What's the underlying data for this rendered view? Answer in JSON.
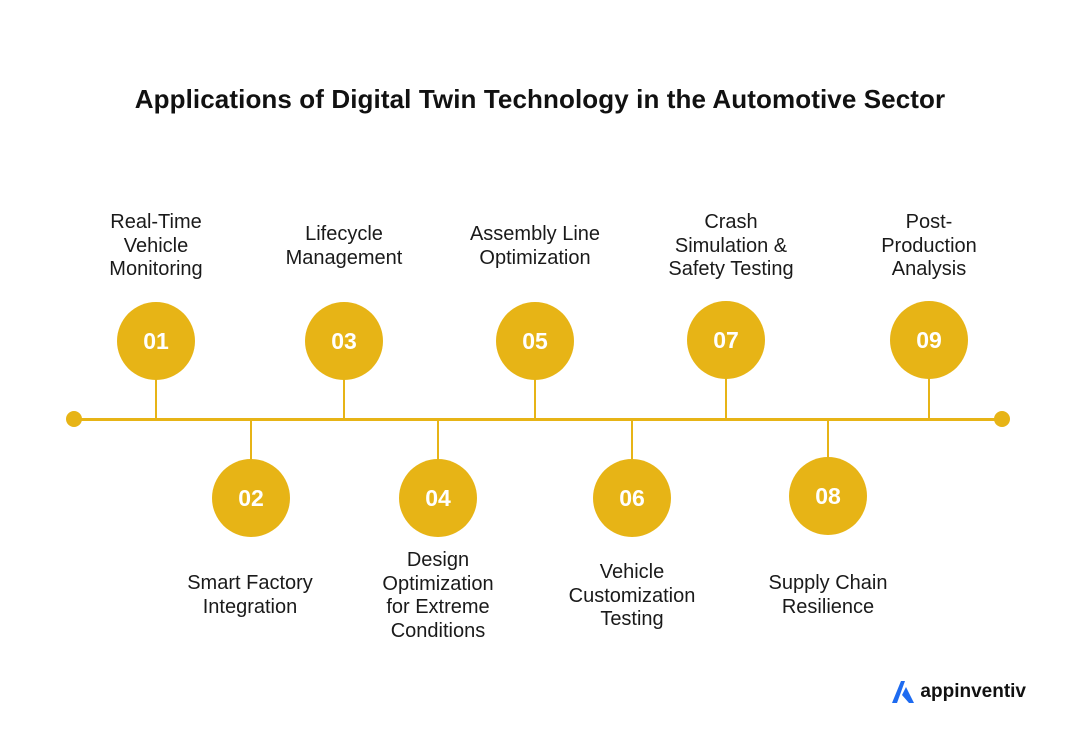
{
  "title": "Applications of Digital Twin Technology in the Automotive Sector",
  "colors": {
    "accent": "#E7B416",
    "brand_blue": "#1E6BF0",
    "text": "#1a1a1a"
  },
  "steps": [
    {
      "number": "01",
      "label": "Real-Time\nVehicle\nMonitoring"
    },
    {
      "number": "02",
      "label": "Smart Factory\nIntegration"
    },
    {
      "number": "03",
      "label": "Lifecycle\nManagement"
    },
    {
      "number": "04",
      "label": "Design\nOptimization\nfor Extreme\nConditions"
    },
    {
      "number": "05",
      "label": "Assembly Line\nOptimization"
    },
    {
      "number": "06",
      "label": "Vehicle\nCustomization\nTesting"
    },
    {
      "number": "07",
      "label": "Crash\nSimulation &\nSafety Testing"
    },
    {
      "number": "08",
      "label": "Supply Chain\nResilience"
    },
    {
      "number": "09",
      "label": "Post-\nProduction\nAnalysis"
    }
  ],
  "brand": {
    "name": "appinventiv",
    "icon": "appinventiv-logo-icon"
  }
}
